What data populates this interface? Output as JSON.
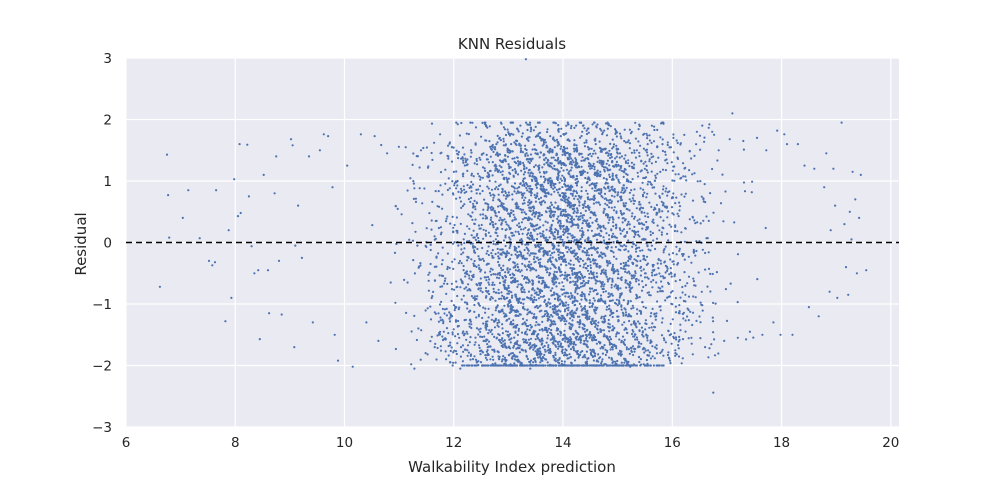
{
  "chart_data": {
    "type": "scatter",
    "title": "KNN Residuals",
    "xlabel": "Walkability Index prediction",
    "ylabel": "Residual",
    "xlim": [
      6,
      20.15
    ],
    "ylim": [
      -3,
      3
    ],
    "xticks": [
      6,
      8,
      10,
      12,
      14,
      16,
      18,
      20
    ],
    "yticks": [
      -3,
      -2,
      -1,
      0,
      1,
      2,
      3
    ],
    "xtick_labels": [
      "6",
      "8",
      "10",
      "12",
      "14",
      "16",
      "18",
      "20"
    ],
    "ytick_labels": [
      "−3",
      "−2",
      "−1",
      "0",
      "1",
      "2",
      "3"
    ],
    "grid": true,
    "reference_line": {
      "y": 0,
      "style": "dashed",
      "color": "#000000"
    },
    "series": [
      {
        "color": "#4c72b0",
        "points": [
          [
            6.62,
            -0.72
          ],
          [
            6.75,
            1.43
          ],
          [
            6.77,
            0.77
          ],
          [
            6.79,
            0.08
          ],
          [
            7.04,
            0.4
          ],
          [
            7.14,
            0.85
          ],
          [
            7.35,
            0.07
          ],
          [
            7.52,
            -0.3
          ],
          [
            7.58,
            -0.37
          ],
          [
            7.63,
            -0.32
          ],
          [
            7.65,
            0.85
          ],
          [
            7.82,
            -1.28
          ],
          [
            7.88,
            0.2
          ],
          [
            7.93,
            -0.9
          ],
          [
            7.98,
            1.03
          ],
          [
            8.05,
            0.43
          ],
          [
            8.1,
            0.48
          ],
          [
            8.08,
            1.6
          ],
          [
            8.22,
            1.59
          ],
          [
            8.25,
            0.75
          ],
          [
            8.3,
            -0.06
          ],
          [
            8.35,
            -0.5
          ],
          [
            8.42,
            -0.45
          ],
          [
            8.45,
            -1.57
          ],
          [
            8.52,
            1.1
          ],
          [
            8.6,
            -0.45
          ],
          [
            8.62,
            -1.15
          ],
          [
            8.75,
            1.4
          ],
          [
            8.72,
            0.8
          ],
          [
            8.8,
            -0.3
          ],
          [
            8.85,
            -1.17
          ],
          [
            9.02,
            1.68
          ],
          [
            9.05,
            1.58
          ],
          [
            9.08,
            -1.7
          ],
          [
            9.1,
            -0.05
          ],
          [
            9.15,
            0.6
          ],
          [
            9.22,
            -0.25
          ],
          [
            9.35,
            1.4
          ],
          [
            9.42,
            -1.3
          ],
          [
            9.55,
            1.5
          ],
          [
            9.62,
            1.76
          ],
          [
            9.7,
            1.73
          ],
          [
            9.78,
            0.9
          ],
          [
            9.82,
            -1.5
          ],
          [
            9.88,
            -1.92
          ],
          [
            10.05,
            1.25
          ],
          [
            10.15,
            -2.02
          ],
          [
            10.3,
            1.76
          ],
          [
            10.4,
            -1.3
          ],
          [
            10.55,
            1.73
          ],
          [
            10.62,
            -1.6
          ],
          [
            10.78,
            1.45
          ],
          [
            11.12,
            1.55
          ],
          [
            11.22,
            -1.98
          ],
          [
            11.28,
            -2.05
          ],
          [
            11.4,
            1.5
          ],
          [
            11.52,
            -1.82
          ],
          [
            11.65,
            -1.7
          ],
          [
            11.75,
            1.76
          ],
          [
            11.9,
            1.4
          ],
          [
            11.98,
            -2.0
          ],
          [
            12.1,
            -1.55
          ],
          [
            12.12,
            -2.05
          ],
          [
            12.25,
            1.35
          ],
          [
            12.38,
            -1.85
          ],
          [
            12.5,
            1.72
          ],
          [
            12.62,
            -1.75
          ],
          [
            12.78,
            1.6
          ],
          [
            12.9,
            -1.9
          ],
          [
            13.05,
            1.6
          ],
          [
            13.12,
            -1.9
          ],
          [
            13.22,
            1.9
          ],
          [
            13.32,
            2.98
          ],
          [
            13.35,
            1.83
          ],
          [
            13.4,
            -2.05
          ],
          [
            13.5,
            1.88
          ],
          [
            13.58,
            -1.72
          ],
          [
            13.72,
            -1.95
          ],
          [
            13.85,
            1.55
          ],
          [
            13.96,
            1.73
          ],
          [
            14.02,
            -2.0
          ],
          [
            14.1,
            1.92
          ],
          [
            14.2,
            -1.75
          ],
          [
            14.24,
            1.9
          ],
          [
            14.35,
            1.8
          ],
          [
            14.42,
            -1.95
          ],
          [
            14.55,
            -1.85
          ],
          [
            14.6,
            1.6
          ],
          [
            14.72,
            -1.7
          ],
          [
            14.82,
            1.85
          ],
          [
            14.9,
            1.53
          ],
          [
            15.02,
            -1.82
          ],
          [
            15.12,
            1.65
          ],
          [
            15.23,
            -2.02
          ],
          [
            15.35,
            1.5
          ],
          [
            15.45,
            -1.5
          ],
          [
            15.55,
            1.6
          ],
          [
            15.62,
            1.62
          ],
          [
            15.72,
            -1.8
          ],
          [
            15.82,
            1.6
          ],
          [
            15.92,
            -1.83
          ],
          [
            16.02,
            1.7
          ],
          [
            16.12,
            -1.72
          ],
          [
            16.22,
            1.75
          ],
          [
            16.35,
            -1.55
          ],
          [
            16.45,
            1.8
          ],
          [
            16.55,
            1.9
          ],
          [
            16.6,
            -1.7
          ],
          [
            16.68,
            1.92
          ],
          [
            16.75,
            -2.44
          ],
          [
            16.85,
            1.5
          ],
          [
            16.95,
            -1.6
          ],
          [
            17.05,
            1.68
          ],
          [
            17.1,
            2.1
          ],
          [
            17.2,
            -1.55
          ],
          [
            17.3,
            1.65
          ],
          [
            17.42,
            -1.45
          ],
          [
            17.55,
            1.7
          ],
          [
            17.65,
            -1.5
          ],
          [
            17.72,
            1.5
          ],
          [
            17.85,
            -1.3
          ],
          [
            17.92,
            1.82
          ],
          [
            17.98,
            -1.5
          ],
          [
            18.05,
            1.76
          ],
          [
            18.1,
            1.6
          ],
          [
            18.2,
            -1.5
          ],
          [
            18.3,
            1.6
          ],
          [
            18.42,
            1.25
          ],
          [
            18.5,
            -1.05
          ],
          [
            18.6,
            1.2
          ],
          [
            18.68,
            -1.2
          ],
          [
            18.78,
            0.9
          ],
          [
            18.82,
            1.45
          ],
          [
            18.88,
            -0.8
          ],
          [
            18.98,
            0.6
          ],
          [
            19.02,
            -0.9
          ],
          [
            19.1,
            1.95
          ],
          [
            19.15,
            0.3
          ],
          [
            19.22,
            -0.85
          ],
          [
            19.28,
            0.05
          ],
          [
            19.35,
            0.7
          ],
          [
            19.38,
            -0.5
          ],
          [
            19.42,
            0.4
          ],
          [
            19.45,
            1.1
          ],
          [
            19.55,
            -0.45
          ],
          [
            18.95,
            1.2
          ],
          [
            19.3,
            1.15
          ],
          [
            18.9,
            0.2
          ],
          [
            19.18,
            -0.4
          ],
          [
            19.25,
            0.5
          ]
        ],
        "bulk": {
          "x_range": [
            8.9,
            19.3
          ],
          "y_spread": [
            -2.0,
            1.95
          ],
          "count": 5200,
          "diagonal_banding": true
        }
      }
    ]
  }
}
